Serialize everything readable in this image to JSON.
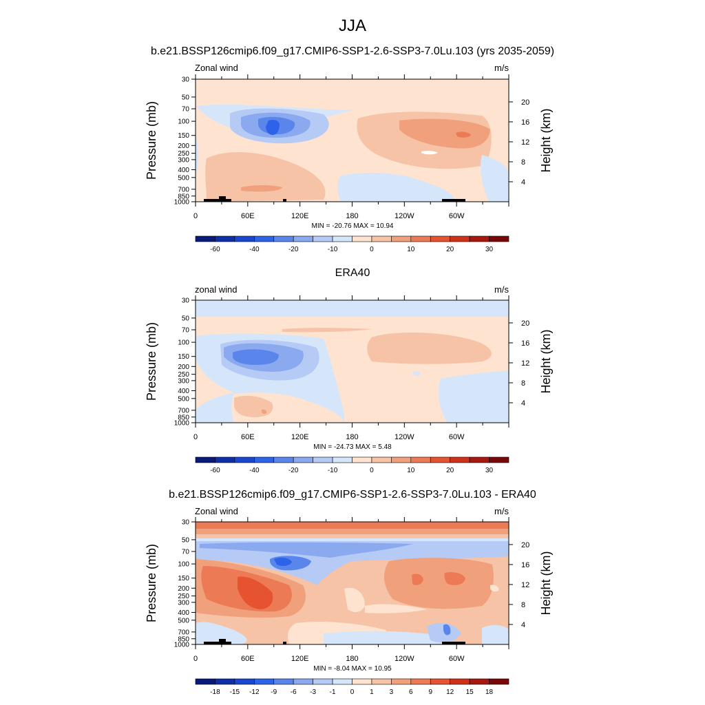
{
  "figure": {
    "title": "JJA"
  },
  "chart_data": [
    {
      "type": "heatmap",
      "title": "b.e21.BSSP126cmip6.f09_g17.CMIP6-SSP1-2.6-SSP3-7.0Lu.103 (yrs 2035-2059)",
      "left_label": "Zonal wind",
      "units": "m/s",
      "ylabel": "Pressure (mb)",
      "y2label": "Height (km)",
      "y_ticks": [
        "30",
        "50",
        "70",
        "100",
        "150",
        "200",
        "250",
        "300",
        "400",
        "500",
        "700",
        "850",
        "1000"
      ],
      "y2_ticks": [
        "20",
        "16",
        "12",
        "8",
        "4"
      ],
      "x_ticks": [
        "0",
        "60E",
        "120E",
        "180",
        "120W",
        "60W"
      ],
      "stats": "MIN = -20.76  MAX =  10.94",
      "colorbar_labels": [
        "-60",
        "-40",
        "-20",
        "-10",
        "0",
        "10",
        "20",
        "30"
      ],
      "min": -20.76,
      "max": 10.94
    },
    {
      "type": "heatmap",
      "title": "ERA40",
      "left_label": "zonal wind",
      "units": "m/s",
      "ylabel": "Pressure (mb)",
      "y2label": "Height (km)",
      "y_ticks": [
        "30",
        "50",
        "70",
        "100",
        "150",
        "200",
        "250",
        "300",
        "400",
        "500",
        "700",
        "850",
        "1000"
      ],
      "y2_ticks": [
        "20",
        "16",
        "12",
        "8",
        "4"
      ],
      "x_ticks": [
        "0",
        "60E",
        "120E",
        "180",
        "120W",
        "60W"
      ],
      "stats": "MIN = -24.73  MAX =   5.48",
      "colorbar_labels": [
        "-60",
        "-40",
        "-20",
        "-10",
        "0",
        "10",
        "20",
        "30"
      ],
      "min": -24.73,
      "max": 5.48
    },
    {
      "type": "heatmap",
      "title": "b.e21.BSSP126cmip6.f09_g17.CMIP6-SSP1-2.6-SSP3-7.0Lu.103 - ERA40",
      "left_label": "Zonal wind",
      "units": "m/s",
      "ylabel": "Pressure (mb)",
      "y2label": "Height (km)",
      "y_ticks": [
        "30",
        "50",
        "70",
        "100",
        "150",
        "200",
        "250",
        "300",
        "400",
        "500",
        "700",
        "850",
        "1000"
      ],
      "y2_ticks": [
        "20",
        "16",
        "12",
        "8",
        "4"
      ],
      "x_ticks": [
        "0",
        "60E",
        "120E",
        "180",
        "120W",
        "60W"
      ],
      "stats": "MIN =  -8.04  MAX =  10.95",
      "colorbar_labels": [
        "-18",
        "-15",
        "-12",
        "-9",
        "-6",
        "-3",
        "-1",
        "0",
        "1",
        "3",
        "6",
        "9",
        "12",
        "15",
        "18"
      ],
      "min": -8.04,
      "max": 10.95
    }
  ],
  "colors": {
    "colorbar": [
      "#0a1a7a",
      "#0f2fa8",
      "#1a47d0",
      "#2d63e8",
      "#5a86ec",
      "#8aa9ef",
      "#b5caf5",
      "#d6e6fa",
      "#fde3d0",
      "#f6c3a6",
      "#f1a07c",
      "#ec7a55",
      "#e65330",
      "#d03219",
      "#a8180f",
      "#7a0808"
    ]
  }
}
